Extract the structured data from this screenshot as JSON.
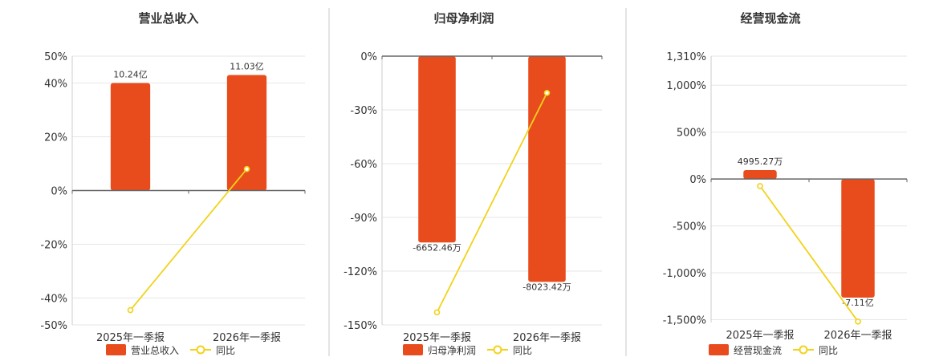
{
  "colors": {
    "bar": "#e84c1c",
    "line": "#f2d21b",
    "point_fill": "#ffffff",
    "divider": "#c8c8c8",
    "grid": "#e6e6e6",
    "axis": "#666666"
  },
  "chart_data": [
    {
      "type": "bar",
      "title": "营业总收入",
      "categories": [
        "2025年一季报",
        "2026年一季报"
      ],
      "bar_series": {
        "name": "营业总收入",
        "labels": [
          "10.24亿",
          "11.03亿"
        ],
        "values_pct": [
          40,
          43
        ]
      },
      "line_series": {
        "name": "同比",
        "values": [
          -44.5,
          8
        ]
      },
      "ylim": [
        -50,
        50
      ],
      "yticks": [
        50,
        40,
        20,
        0,
        -20,
        -40,
        -50
      ],
      "ytick_labels": [
        "50%",
        "40%",
        "20%",
        "0%",
        "-20%",
        "-40%",
        "-50%"
      ],
      "legend_position": "bottom"
    },
    {
      "type": "bar",
      "title": "归母净利润",
      "categories": [
        "2025年一季报",
        "2026年一季报"
      ],
      "bar_series": {
        "name": "归母净利润",
        "labels": [
          "-6652.46万",
          "-8023.42万"
        ],
        "values_pct": [
          -104,
          -126
        ]
      },
      "line_series": {
        "name": "同比",
        "values": [
          -143,
          -20.5
        ]
      },
      "ylim": [
        -150,
        0
      ],
      "yticks": [
        0,
        -30,
        -60,
        -90,
        -120,
        -150
      ],
      "ytick_labels": [
        "0%",
        "-30%",
        "-60%",
        "-90%",
        "-120%",
        "-150%"
      ],
      "legend_position": "bottom"
    },
    {
      "type": "bar",
      "title": "经营现金流",
      "categories": [
        "2025年一季报",
        "2026年一季报"
      ],
      "bar_series": {
        "name": "经营现金流",
        "labels": [
          "4995.27万",
          "-7.11亿"
        ],
        "values_pct": [
          95,
          -1265
        ]
      },
      "line_series": {
        "name": "同比",
        "values": [
          -75,
          -1520
        ]
      },
      "ylim": [
        -1530,
        1310
      ],
      "yticks": [
        1310,
        1000,
        500,
        0,
        -500,
        -1000,
        -1500
      ],
      "ytick_labels": [
        "1,310%",
        "1,000%",
        "500%",
        "0%",
        "-500%",
        "-1,000%",
        "-1,500%"
      ],
      "legend_position": "bottom"
    }
  ]
}
